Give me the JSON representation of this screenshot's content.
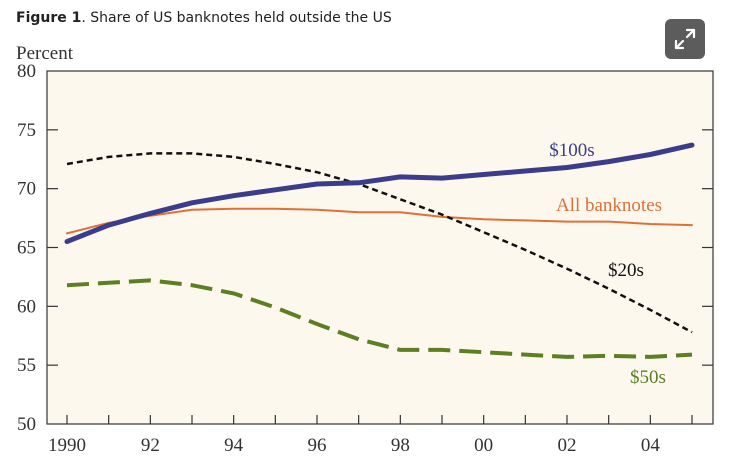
{
  "figure": {
    "label": "Figure 1",
    "title": ". Share of US banknotes held outside the US"
  },
  "expand_button": {
    "icon": "expand-icon"
  },
  "colors": {
    "plot_background": "#fcf8ee",
    "axis": "#333333",
    "text": "#333333"
  },
  "chart_data": {
    "type": "line",
    "ylabel": "Percent",
    "xlabel": "",
    "xlim": [
      1990,
      2005
    ],
    "ylim": [
      50,
      80
    ],
    "yticks": [
      50,
      55,
      60,
      65,
      70,
      75,
      80
    ],
    "ytick_labels": [
      "50",
      "55",
      "60",
      "65",
      "70",
      "75",
      "80"
    ],
    "xtick_labels": [
      {
        "x": 1990,
        "label": "1990"
      },
      {
        "x": 1992,
        "label": "92"
      },
      {
        "x": 1994,
        "label": "94"
      },
      {
        "x": 1996,
        "label": "96"
      },
      {
        "x": 1998,
        "label": "98"
      },
      {
        "x": 2000,
        "label": "00"
      },
      {
        "x": 2002,
        "label": "02"
      },
      {
        "x": 2004,
        "label": "04"
      }
    ],
    "grid": false,
    "legend": "inline labels",
    "series": [
      {
        "name": "$100s",
        "color": "#3b3d8c",
        "style": "solid-thick",
        "x": [
          1990,
          1991,
          1992,
          1993,
          1994,
          1995,
          1996,
          1997,
          1998,
          1999,
          2000,
          2001,
          2002,
          2003,
          2004,
          2005
        ],
        "y": [
          65.5,
          66.9,
          67.9,
          68.8,
          69.4,
          69.9,
          70.4,
          70.5,
          71.0,
          70.9,
          71.2,
          71.5,
          71.8,
          72.3,
          72.9,
          73.7
        ]
      },
      {
        "name": "All banknotes",
        "color": "#e0703a",
        "style": "solid-thin",
        "x": [
          1990,
          1991,
          1992,
          1993,
          1994,
          1995,
          1996,
          1997,
          1998,
          1999,
          2000,
          2001,
          2002,
          2003,
          2004,
          2005
        ],
        "y": [
          66.2,
          67.1,
          67.7,
          68.2,
          68.3,
          68.3,
          68.2,
          68.0,
          68.0,
          67.6,
          67.4,
          67.3,
          67.2,
          67.2,
          67.0,
          66.9
        ]
      },
      {
        "name": "$20s",
        "color": "#111111",
        "style": "dotted",
        "x": [
          1990,
          1991,
          1992,
          1993,
          1994,
          1995,
          1996,
          1997,
          1998,
          1999,
          2000,
          2001,
          2002,
          2003,
          2004,
          2005
        ],
        "y": [
          72.1,
          72.7,
          73.0,
          73.0,
          72.7,
          72.1,
          71.4,
          70.4,
          69.1,
          67.8,
          66.3,
          64.8,
          63.2,
          61.5,
          59.7,
          57.8
        ]
      },
      {
        "name": "$50s",
        "color": "#5b7f22",
        "style": "dashed-thick",
        "x": [
          1990,
          1991,
          1992,
          1993,
          1994,
          1995,
          1996,
          1997,
          1998,
          1999,
          2000,
          2001,
          2002,
          2003,
          2004,
          2005
        ],
        "y": [
          61.8,
          62.0,
          62.2,
          61.8,
          61.1,
          59.9,
          58.5,
          57.2,
          56.3,
          56.3,
          56.1,
          55.9,
          55.7,
          55.8,
          55.7,
          55.9
        ]
      }
    ]
  }
}
